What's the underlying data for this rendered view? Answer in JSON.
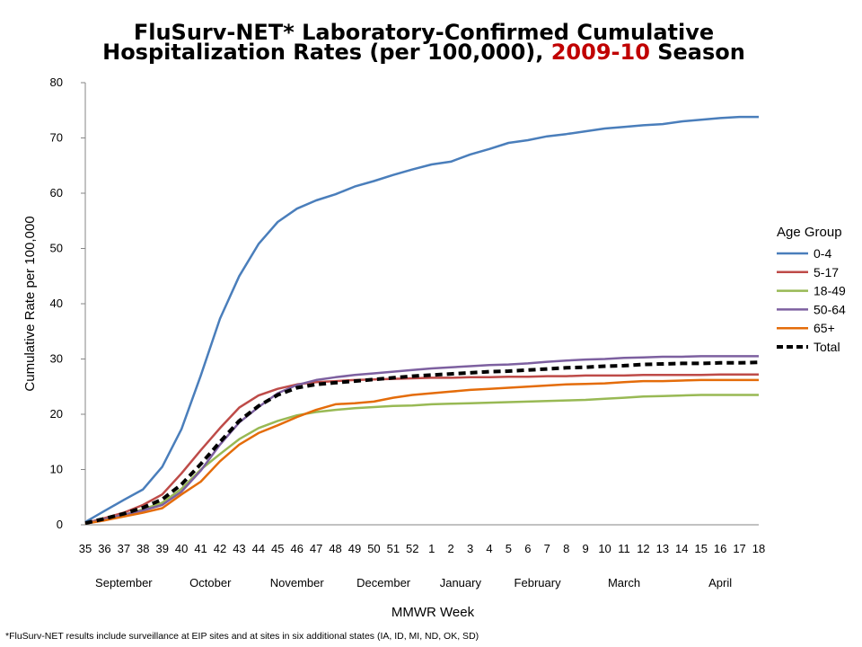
{
  "chart_data": {
    "type": "line",
    "title_line1": "FluSurv-NET* Laboratory-Confirmed Cumulative",
    "title_line2_prefix": "Hospitalization Rates (per 100,000), ",
    "title_line2_highlight": "2009-10",
    "title_line2_suffix": " Season",
    "highlight_color": "#C00000",
    "xlabel": "MMWR Week",
    "ylabel": "Cumulative Rate per 100,000",
    "ylim": [
      0,
      80
    ],
    "yticks": [
      0,
      10,
      20,
      30,
      40,
      50,
      60,
      70,
      80
    ],
    "grid": false,
    "x": [
      "35",
      "36",
      "37",
      "38",
      "39",
      "40",
      "41",
      "42",
      "43",
      "44",
      "45",
      "46",
      "47",
      "48",
      "49",
      "50",
      "51",
      "52",
      "1",
      "2",
      "3",
      "4",
      "5",
      "6",
      "7",
      "8",
      "9",
      "10",
      "11",
      "12",
      "13",
      "14",
      "15",
      "16",
      "17",
      "18"
    ],
    "months": [
      "September",
      "October",
      "November",
      "December",
      "January",
      "February",
      "March",
      "April"
    ],
    "legend_title": "Age Group",
    "legend_position": "right",
    "series": [
      {
        "name": "0-4",
        "color": "#4A7EBB",
        "dashed": false,
        "values": [
          0.5,
          2.5,
          4.5,
          6.4,
          10.5,
          17.3,
          27,
          37.3,
          45,
          50.8,
          54.8,
          57.2,
          58.7,
          59.8,
          61.2,
          62.2,
          63.3,
          64.3,
          65.2,
          65.7,
          67,
          68,
          69.1,
          69.6,
          70.3,
          70.7,
          71.2,
          71.7,
          72.0,
          72.3,
          72.5,
          73.0,
          73.3,
          73.6,
          73.8,
          73.8
        ]
      },
      {
        "name": "5-17",
        "color": "#BE4B48",
        "dashed": false,
        "values": [
          0.3,
          1.2,
          2.2,
          3.6,
          5.5,
          9.3,
          13.5,
          17.5,
          21.2,
          23.4,
          24.6,
          25.4,
          25.8,
          26.0,
          26.2,
          26.3,
          26.4,
          26.5,
          26.6,
          26.6,
          26.7,
          26.7,
          26.8,
          26.8,
          26.9,
          26.9,
          27.0,
          27.0,
          27.0,
          27.1,
          27.1,
          27.1,
          27.1,
          27.2,
          27.2,
          27.2
        ]
      },
      {
        "name": "18-49",
        "color": "#98B954",
        "dashed": false,
        "values": [
          0.2,
          1.0,
          1.8,
          2.8,
          4.0,
          6.5,
          10.0,
          12.8,
          15.5,
          17.5,
          18.8,
          19.8,
          20.4,
          20.8,
          21.1,
          21.3,
          21.5,
          21.6,
          21.8,
          21.9,
          22.0,
          22.1,
          22.2,
          22.3,
          22.4,
          22.5,
          22.6,
          22.8,
          23.0,
          23.2,
          23.3,
          23.4,
          23.5,
          23.5,
          23.5,
          23.5
        ]
      },
      {
        "name": "50-64",
        "color": "#7D60A0",
        "dashed": false,
        "values": [
          0.2,
          1.0,
          1.8,
          2.6,
          3.6,
          6.0,
          9.8,
          14.5,
          18.5,
          21.3,
          23.8,
          25.3,
          26.2,
          26.7,
          27.1,
          27.4,
          27.7,
          28.0,
          28.3,
          28.5,
          28.7,
          28.9,
          29.0,
          29.2,
          29.5,
          29.7,
          29.9,
          30.0,
          30.2,
          30.3,
          30.4,
          30.4,
          30.5,
          30.5,
          30.5,
          30.5
        ]
      },
      {
        "name": "65+",
        "color": "#E46C0A",
        "dashed": false,
        "values": [
          0.2,
          0.8,
          1.5,
          2.2,
          3.0,
          5.5,
          7.8,
          11.5,
          14.5,
          16.6,
          18.0,
          19.5,
          20.8,
          21.8,
          22.0,
          22.3,
          23.0,
          23.5,
          23.8,
          24.1,
          24.4,
          24.6,
          24.8,
          25.0,
          25.2,
          25.4,
          25.5,
          25.6,
          25.8,
          26.0,
          26.0,
          26.1,
          26.2,
          26.2,
          26.2,
          26.2
        ]
      },
      {
        "name": "Total",
        "color": "#000000",
        "dashed": true,
        "values": [
          0.3,
          1.1,
          2.0,
          3.1,
          4.6,
          7.3,
          11.0,
          15.0,
          18.8,
          21.5,
          23.5,
          24.8,
          25.4,
          25.7,
          26.0,
          26.3,
          26.6,
          26.9,
          27.1,
          27.3,
          27.5,
          27.7,
          27.8,
          28.0,
          28.2,
          28.4,
          28.5,
          28.7,
          28.8,
          29.0,
          29.1,
          29.2,
          29.2,
          29.3,
          29.3,
          29.4
        ]
      }
    ],
    "footnote": "*FluSurv-NET results include surveillance at EIP sites and at sites in six additional states (IA, ID, MI, ND, OK, SD)"
  }
}
